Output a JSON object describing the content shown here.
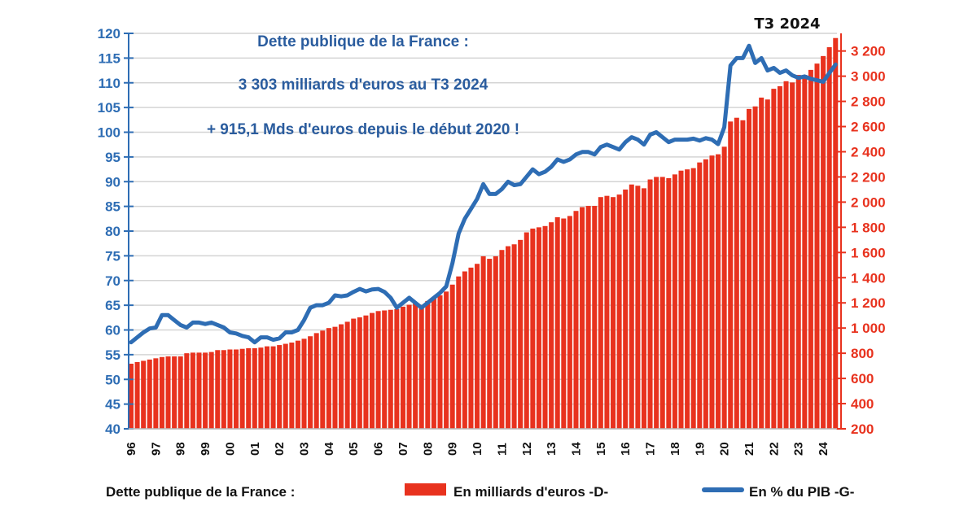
{
  "chart_data": {
    "type": "bar+line",
    "annotations": [
      "Dette publique de la France :",
      "3 303 milliards d'euros au T3 2024",
      "+ 915,1 Mds d'euros depuis le début 2020 !"
    ],
    "callout": "T3 2024",
    "x_tick_labels": [
      "96",
      "97",
      "98",
      "99",
      "00",
      "01",
      "02",
      "03",
      "04",
      "05",
      "06",
      "07",
      "08",
      "09",
      "10",
      "11",
      "12",
      "13",
      "14",
      "15",
      "16",
      "17",
      "18",
      "19",
      "20",
      "21",
      "22",
      "23",
      "24"
    ],
    "frequency": "quarterly",
    "first_quarter": "1996 T1",
    "last_quarter": "2024 T3",
    "left_axis": {
      "ylim": [
        40,
        120
      ],
      "ticks": [
        40,
        45,
        50,
        55,
        60,
        65,
        70,
        75,
        80,
        85,
        90,
        95,
        100,
        105,
        110,
        115,
        120
      ],
      "color": "#2E6DB4"
    },
    "right_axis": {
      "ylim": [
        200,
        3340
      ],
      "ticks": [
        200,
        400,
        600,
        800,
        1000,
        1200,
        1400,
        1600,
        1800,
        2000,
        2200,
        2400,
        2600,
        2800,
        3000,
        3200
      ],
      "tick_labels": [
        "200",
        "400",
        "600",
        "800",
        "1 000",
        "1 200",
        "1 400",
        "1 600",
        "1 800",
        "2 000",
        "2 200",
        "2 400",
        "2 600",
        "2 800",
        "3 000",
        "3 200"
      ],
      "color": "#E8321E"
    },
    "grid": true,
    "legend": {
      "position": "bottom",
      "title": "Dette publique de la France :",
      "items": [
        "En milliards d'euros -D-",
        "En % du PIB -G-"
      ]
    },
    "series": [
      {
        "name": "En milliards d'euros -D-",
        "type": "bar",
        "axis": "right",
        "color": "#E8321E",
        "values": [
          717,
          730,
          740,
          750,
          760,
          770,
          775,
          775,
          775,
          800,
          805,
          805,
          805,
          810,
          825,
          825,
          830,
          830,
          835,
          840,
          840,
          845,
          855,
          855,
          865,
          875,
          885,
          900,
          915,
          935,
          960,
          980,
          1000,
          1010,
          1030,
          1050,
          1075,
          1085,
          1100,
          1120,
          1135,
          1140,
          1145,
          1150,
          1170,
          1185,
          1195,
          1185,
          1215,
          1240,
          1260,
          1290,
          1345,
          1410,
          1450,
          1480,
          1510,
          1570,
          1550,
          1570,
          1620,
          1650,
          1665,
          1700,
          1760,
          1790,
          1800,
          1810,
          1840,
          1880,
          1870,
          1890,
          1930,
          1960,
          1970,
          1970,
          2040,
          2050,
          2040,
          2060,
          2100,
          2140,
          2130,
          2110,
          2180,
          2200,
          2200,
          2190,
          2220,
          2250,
          2260,
          2270,
          2315,
          2340,
          2370,
          2380,
          2440,
          2640,
          2670,
          2650,
          2740,
          2760,
          2830,
          2815,
          2900,
          2920,
          2960,
          2950,
          3010,
          3010,
          3050,
          3100,
          3160,
          3230,
          3303
        ]
      },
      {
        "name": "En % du PIB -G-",
        "type": "line",
        "axis": "left",
        "color": "#2E6DB4",
        "values": [
          57.5,
          58.5,
          59.5,
          60.3,
          60.5,
          63,
          63,
          62,
          61,
          60.5,
          61.5,
          61.5,
          61.2,
          61.5,
          61,
          60.5,
          59.5,
          59.3,
          58.8,
          58.5,
          57.5,
          58.5,
          58.5,
          58,
          58.3,
          59.5,
          59.5,
          60,
          62,
          64.5,
          65,
          65,
          65.5,
          67,
          66.8,
          67,
          67.7,
          68.3,
          67.8,
          68.2,
          68.3,
          67.7,
          66.5,
          64.5,
          65.5,
          66.5,
          65.5,
          64.5,
          65.5,
          66.5,
          67.5,
          68.8,
          73.5,
          79.5,
          82.5,
          84.5,
          86.5,
          89.5,
          87.5,
          87.5,
          88.5,
          90,
          89.3,
          89.5,
          91,
          92.5,
          91.5,
          92,
          93,
          94.5,
          94,
          94.5,
          95.5,
          96,
          96,
          95.5,
          97,
          97.5,
          97,
          96.5,
          98,
          99,
          98.5,
          97.5,
          99.5,
          100,
          99,
          98,
          98.5,
          98.5,
          98.5,
          98.7,
          98.3,
          98.8,
          98.5,
          97.6,
          101,
          113.5,
          115,
          115,
          117.5,
          114,
          115,
          112.5,
          113,
          112,
          112.5,
          111.5,
          111,
          111.3,
          110.8,
          110.5,
          110.2,
          112,
          113.7
        ]
      }
    ]
  }
}
